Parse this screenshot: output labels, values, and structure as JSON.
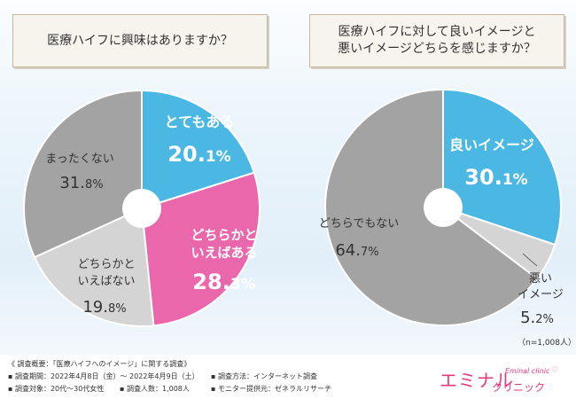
{
  "chart_data": [
    {
      "type": "pie",
      "title": "医療ハイフに興味はありますか？",
      "slices": [
        {
          "label": "とてもある",
          "value": 20.1,
          "color": "#4bb7e3"
        },
        {
          "label": "どちらかと いえばある",
          "value": 28.3,
          "color": "#ea67ac"
        },
        {
          "label": "どちらかと いえばない",
          "value": 19.8,
          "color": "#d4d4d4"
        },
        {
          "label": "まったくない",
          "value": 31.8,
          "color": "#a3a3a3"
        }
      ]
    },
    {
      "type": "pie",
      "title": "医療ハイフに対して良いイメージと 悪いイメージどちらを感じますか？",
      "slices": [
        {
          "label": "良いイメージ",
          "value": 30.1,
          "color": "#4bb7e3"
        },
        {
          "label": "悪い イメージ",
          "value": 5.2,
          "color": "#d4d4d4"
        },
        {
          "label": "どちらでもない",
          "value": 64.7,
          "color": "#a3a3a3"
        }
      ],
      "note": "（n=1,008人）"
    }
  ],
  "q1": {
    "text": "医療ハイフに興味はありますか？"
  },
  "q2": {
    "line1": "医療ハイフに対して良いイメージと",
    "line2": "悪いイメージどちらを感じますか？"
  },
  "footer": {
    "title": "《 調査概要：「医療ハイフへのイメージ」に関する調査》",
    "items": [
      "調査期間：2022年4月8日（金）～ 2022年4月9日（土）",
      "調査方法：インターネット調査",
      "調査対象：20代～30代女性",
      "調査人数：1,008人",
      "モニター提供元：ゼネラルリサーチ"
    ]
  },
  "logo": {
    "main": "エミナル",
    "sub": "クリニック",
    "eng": "Eminal clinic"
  }
}
